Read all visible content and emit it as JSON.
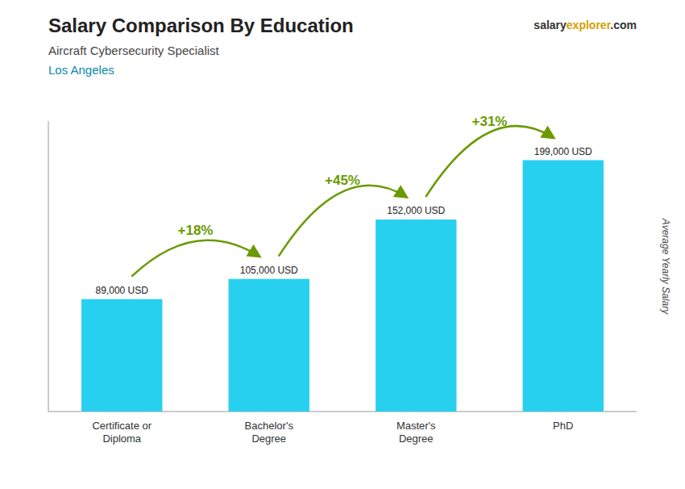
{
  "chart_data": {
    "type": "bar",
    "title": "Salary Comparison By Education",
    "subtitle": "Aircraft Cybersecurity Specialist",
    "y_label": "Average Yearly Salary",
    "categories": [
      "Certificate or\nDiploma",
      "Bachelor's\nDegree",
      "Master's\nDegree",
      "PhD"
    ],
    "values": [
      89000,
      105000,
      152000,
      199000
    ],
    "value_labels": [
      "89,000 USD",
      "105,000 USD",
      "152,000 USD",
      "199,000 USD"
    ],
    "data_labels": true,
    "color": "#28d0f0",
    "ylim": [
      0,
      230000
    ],
    "grid": false,
    "tick_labels": "x",
    "annotations": {
      "changes": [
        "+18%",
        "+45%",
        "+31%"
      ],
      "location": "Los Angeles",
      "brand": [
        "salary",
        "explorer",
        ".com"
      ]
    }
  }
}
